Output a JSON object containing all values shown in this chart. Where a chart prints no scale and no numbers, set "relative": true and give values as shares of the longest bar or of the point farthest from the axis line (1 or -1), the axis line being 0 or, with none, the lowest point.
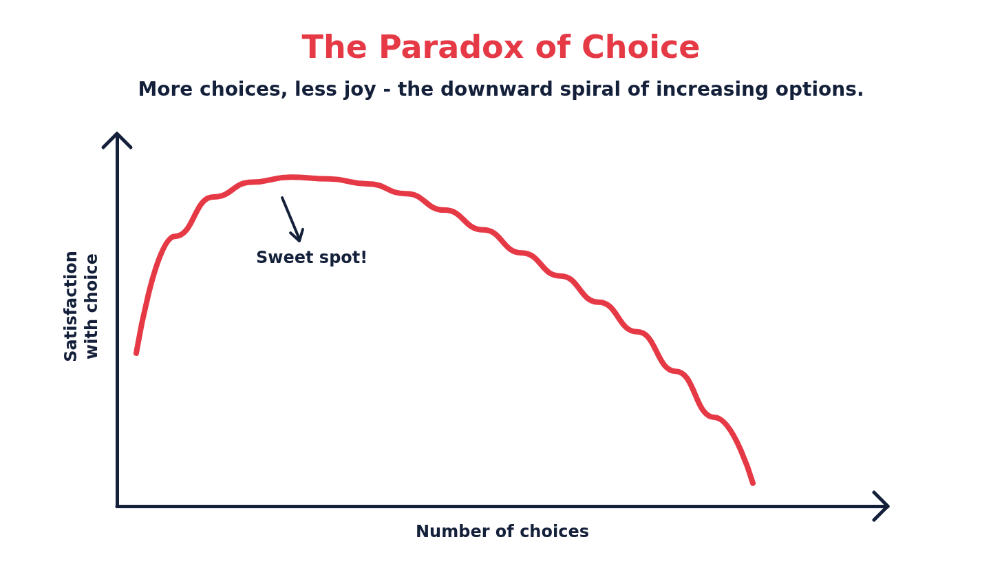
{
  "chart_data": {
    "type": "line",
    "title": "The Paradox of Choice",
    "subtitle": "More choices, less joy - the downward spiral of increasing options.",
    "xlabel": "Number of choices",
    "ylabel": "Satisfaction\nwith choice",
    "relative": true,
    "categories": [
      null,
      null,
      null,
      null,
      null,
      null,
      null,
      null,
      null,
      null,
      null,
      null,
      null,
      null,
      null,
      null,
      null,
      null,
      null,
      null
    ],
    "series": [
      {
        "color": "#e63946",
        "values": [
          0.465,
          0.82,
          0.94,
          0.985,
          1,
          0.995,
          0.98,
          0.95,
          0.9,
          0.84,
          0.77,
          0.7,
          0.62,
          0.53,
          0.41,
          0.27,
          0.07,
          null,
          null,
          null
        ]
      }
    ],
    "annotations": [
      "Sweet spot!"
    ],
    "line_style": "solid",
    "grid": false
  }
}
